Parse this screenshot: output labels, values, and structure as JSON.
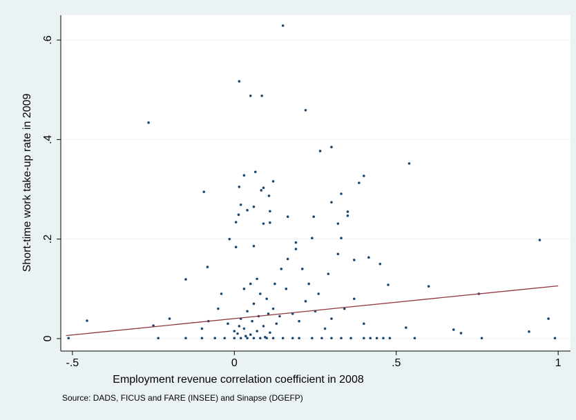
{
  "chart_data": {
    "type": "scatter",
    "x_label": "Employment revenue correlation coefficient in 2008",
    "y_label": "Short-time work take-up rate in 2009",
    "note": "Source: DADS, FICUS and FARE (INSEE) and Sinapse (DGEFP)",
    "xlim": [
      -0.536,
      1.038
    ],
    "ylim": [
      -0.025,
      0.65
    ],
    "xticks": [
      {
        "value": -0.5,
        "label": "-.5"
      },
      0,
      {
        "value": 0.5,
        "label": ".5"
      },
      1
    ],
    "yticks": [
      0,
      {
        "value": 0.2,
        "label": ".2"
      },
      {
        "value": 0.4,
        "label": ".4"
      },
      {
        "value": 0.6,
        "label": ".6"
      }
    ],
    "grid": true,
    "series": [
      {
        "type": "scatter",
        "color": "#1a476f",
        "x": [
          0.15,
          0.015,
          0.05,
          0.085,
          0.22,
          -0.265,
          0.3,
          0.265,
          0.54,
          0.065,
          0.03,
          0.4,
          0.385,
          0.12,
          0.015,
          0.09,
          -0.094,
          0.083,
          0.3,
          0.02,
          0.33,
          0.06,
          0.04,
          0.11,
          0.107,
          0.35,
          0.013,
          0.165,
          0.245,
          0.005,
          0.09,
          0.11,
          0.35,
          0.32,
          0.943,
          -0.015,
          0.06,
          0.19,
          0.24,
          0.33,
          0.005,
          -0.15,
          -0.083,
          0.37,
          0.415,
          0.45,
          0.6,
          0.475,
          0.755,
          0.97,
          0.91,
          0.99,
          -0.455,
          -0.2,
          -0.25,
          -0.512,
          -0.235,
          -0.15,
          0.677,
          0.7,
          0.53,
          0.764,
          0.557,
          -0.1,
          -0.06,
          -0.03,
          0,
          0.02,
          0.04,
          0.06,
          0.08,
          0.1,
          0.12,
          0.15,
          0.18,
          0.2,
          0.24,
          0.27,
          0.3,
          0.33,
          0.36,
          0.4,
          0.42,
          0.44,
          0.46,
          0.48,
          0.01,
          0.03,
          0.05,
          0.07,
          0.09,
          0.11,
          0.13,
          0.02,
          0.04,
          0.06,
          0.08,
          0.03,
          0.05,
          0.07,
          0.1,
          0.12,
          0.14,
          0.16,
          0.18,
          0.2,
          0.22,
          0.25,
          0.28,
          0.3,
          0.34,
          0.37,
          0.4,
          -0.02,
          -0.05,
          -0.08,
          -0.1,
          -0.04,
          0,
          0.015,
          0.035,
          0.055,
          0.075,
          0.095,
          0.105,
          0.125,
          0.145,
          0.165,
          0.23,
          0.26,
          0.29,
          0.32,
          0.21,
          0.19
        ],
        "y": [
          0.629,
          0.517,
          0.488,
          0.488,
          0.459,
          0.434,
          0.385,
          0.377,
          0.352,
          0.335,
          0.328,
          0.327,
          0.313,
          0.316,
          0.305,
          0.303,
          0.295,
          0.298,
          0.274,
          0.269,
          0.291,
          0.265,
          0.258,
          0.256,
          0.287,
          0.255,
          0.249,
          0.245,
          0.245,
          0.234,
          0.231,
          0.233,
          0.247,
          0.231,
          0.198,
          0.2,
          0.186,
          0.193,
          0.202,
          0.202,
          0.184,
          0.119,
          0.144,
          0.158,
          0.163,
          0.15,
          0.105,
          0.108,
          0.09,
          0.04,
          0.014,
          0.001,
          0.036,
          0.04,
          0.026,
          0.001,
          0.001,
          0.001,
          0.018,
          0.011,
          0.022,
          0.001,
          0.001,
          0.001,
          0.001,
          0.001,
          0.001,
          0.001,
          0.001,
          0.001,
          0.001,
          0.001,
          0.001,
          0.001,
          0.001,
          0.001,
          0.001,
          0.001,
          0.001,
          0.001,
          0.001,
          0.001,
          0.001,
          0.001,
          0.001,
          0.001,
          0.01,
          0.02,
          0.008,
          0.015,
          0.025,
          0.012,
          0.03,
          0.04,
          0.055,
          0.07,
          0.09,
          0.1,
          0.11,
          0.12,
          0.08,
          0.06,
          0.045,
          0.1,
          0.05,
          0.035,
          0.075,
          0.055,
          0.02,
          0.04,
          0.06,
          0.08,
          0.03,
          0.03,
          0.06,
          0.035,
          0.02,
          0.09,
          0.015,
          0.025,
          0.005,
          0.035,
          0.045,
          0.003,
          0.05,
          0.11,
          0.14,
          0.16,
          0.11,
          0.09,
          0.13,
          0.17,
          0.14,
          0.18
        ]
      },
      {
        "type": "line",
        "color": "#90353b",
        "x": [
          -0.52,
          1
        ],
        "y": [
          0.006,
          0.106
        ]
      }
    ]
  }
}
